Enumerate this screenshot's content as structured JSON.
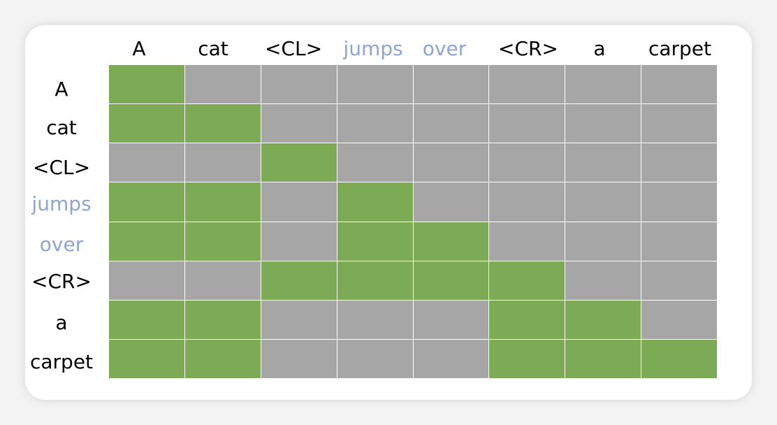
{
  "tokens": [
    {
      "text": "A",
      "highlight": false
    },
    {
      "text": "cat",
      "highlight": false
    },
    {
      "text": "<CL>",
      "highlight": false
    },
    {
      "text": "jumps",
      "highlight": true
    },
    {
      "text": "over",
      "highlight": true
    },
    {
      "text": "<CR>",
      "highlight": false
    },
    {
      "text": "a",
      "highlight": false
    },
    {
      "text": "carpet",
      "highlight": false
    }
  ],
  "mask": [
    [
      1,
      0,
      0,
      0,
      0,
      0,
      0,
      0
    ],
    [
      1,
      1,
      0,
      0,
      0,
      0,
      0,
      0
    ],
    [
      0,
      0,
      1,
      0,
      0,
      0,
      0,
      0
    ],
    [
      1,
      1,
      0,
      1,
      0,
      0,
      0,
      0
    ],
    [
      1,
      1,
      0,
      1,
      1,
      0,
      0,
      0
    ],
    [
      0,
      0,
      1,
      1,
      1,
      1,
      0,
      0
    ],
    [
      1,
      1,
      0,
      0,
      0,
      1,
      1,
      0
    ],
    [
      1,
      1,
      0,
      0,
      0,
      1,
      1,
      1
    ]
  ],
  "colors": {
    "attended": "#7daa55",
    "masked": "#a6a6a6",
    "highlight_text": "#8ea4d2",
    "normal_text": "#000000"
  }
}
